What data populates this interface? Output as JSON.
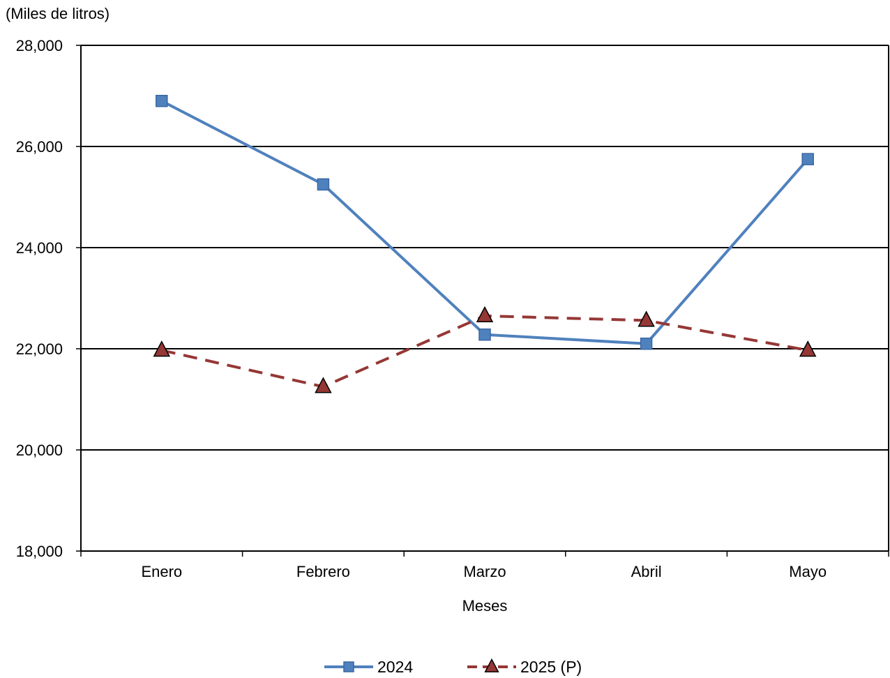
{
  "chart_data": {
    "type": "line",
    "ylabel": "(Miles de litros)",
    "xlabel": "Meses",
    "categories": [
      "Enero",
      "Febrero",
      "Marzo",
      "Abril",
      "Mayo"
    ],
    "ylim": [
      18000,
      28000
    ],
    "yticks": [
      18000,
      20000,
      22000,
      24000,
      26000,
      28000
    ],
    "ytick_labels": [
      "18,000",
      "20,000",
      "22,000",
      "24,000",
      "26,000",
      "28,000"
    ],
    "grid": "horizontal",
    "legend_position": "bottom",
    "series": [
      {
        "name": "2024",
        "values": [
          26900,
          25250,
          22280,
          22100,
          25750
        ],
        "color": "#4f81bd",
        "line_style": "solid",
        "marker": "square"
      },
      {
        "name": "2025 (P)",
        "values": [
          21970,
          21250,
          22650,
          22560,
          21970
        ],
        "color": "#953735",
        "line_style": "dashed",
        "marker": "triangle"
      }
    ]
  }
}
